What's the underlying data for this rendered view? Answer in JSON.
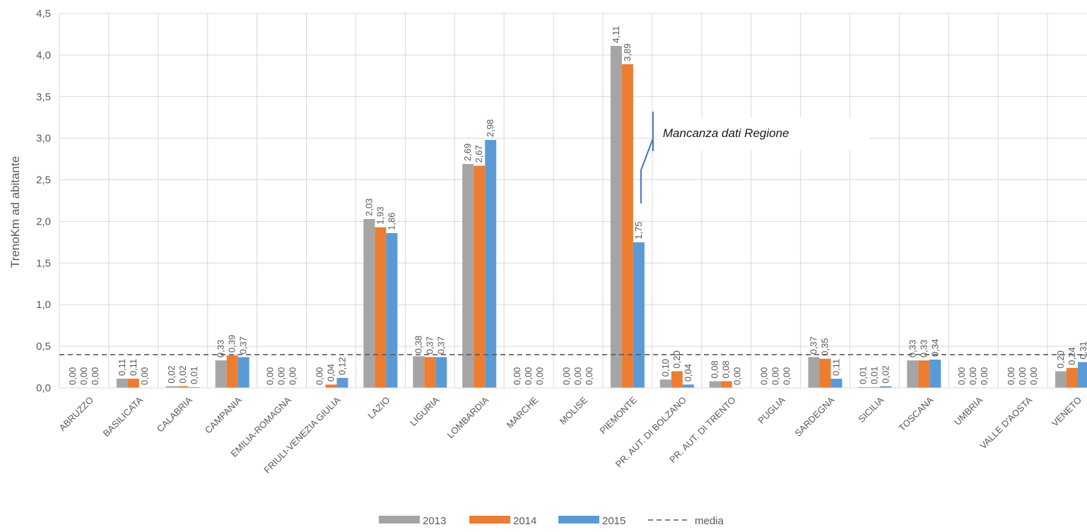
{
  "chart_data": {
    "type": "bar",
    "title": "",
    "xlabel": "",
    "ylabel": "TrenoKm ad abitante",
    "ylim": [
      0,
      4.5
    ],
    "yticks": [
      "0,0",
      "0,5",
      "1,0",
      "1,5",
      "2,0",
      "2,5",
      "3,0",
      "3,5",
      "4,0",
      "4,5"
    ],
    "grid": true,
    "legend_position": "bottom",
    "categories": [
      "ABRUZZO",
      "BASILICATA",
      "CALABRIA",
      "CAMPANIA",
      "EMILIA-ROMAGNA",
      "FRIULI-VENEZIA GIULIA",
      "LAZIO",
      "LIGURIA",
      "LOMBARDIA",
      "MARCHE",
      "MOLISE",
      "PIEMONTE",
      "PR. AUT. DI BOLZANO",
      "PR. AUT. DI TRENTO",
      "PUGLIA",
      "SARDEGNA",
      "SICILIA",
      "TOSCANA",
      "UMBRIA",
      "VALLE D'AOSTA",
      "VENETO"
    ],
    "series": [
      {
        "name": "2013",
        "color": "#A5A5A5",
        "values": [
          0,
          0.11,
          0.02,
          0.33,
          0,
          0,
          2.03,
          0.38,
          2.69,
          0,
          0,
          4.11,
          0.1,
          0.08,
          0,
          0.37,
          0.01,
          0.33,
          0,
          0,
          0.2
        ],
        "labels": [
          "0,00",
          "0,11",
          "0,02",
          "0,33",
          "0,00",
          "0,00",
          "2,03",
          "0,38",
          "2,69",
          "0,00",
          "0,00",
          "4,11",
          "0,10",
          "0,08",
          "0,00",
          "0,37",
          "0,01",
          "0,33",
          "0,00",
          "0,00",
          "0,20"
        ]
      },
      {
        "name": "2014",
        "color": "#ED7D31",
        "values": [
          0,
          0.11,
          0.02,
          0.39,
          0,
          0.04,
          1.93,
          0.37,
          2.67,
          0,
          0,
          3.89,
          0.2,
          0.08,
          0,
          0.35,
          0.01,
          0.33,
          0,
          0,
          0.24
        ],
        "labels": [
          "0,00",
          "0,11",
          "0,02",
          "0,39",
          "0,00",
          "0,04",
          "1,93",
          "0,37",
          "2,67",
          "0,00",
          "0,00",
          "3,89",
          "0,20",
          "0,08",
          "0,00",
          "0,35",
          "0,01",
          "0,33",
          "0,00",
          "0,00",
          "0,24"
        ]
      },
      {
        "name": "2015",
        "color": "#5B9BD5",
        "values": [
          0,
          0,
          0.01,
          0.37,
          0,
          0.12,
          1.86,
          0.37,
          2.98,
          0,
          0,
          1.75,
          0.04,
          0,
          0,
          0.11,
          0.02,
          0.34,
          0,
          0,
          0.31
        ],
        "labels": [
          "0,00",
          "0,00",
          "0,01",
          "0,37",
          "0,00",
          "0,12",
          "1,86",
          "0,37",
          "2,98",
          "0,00",
          "0,00",
          "1,75",
          "0,04",
          "0,00",
          "0,00",
          "0,11",
          "0,02",
          "0,34",
          "0,00",
          "0,00",
          "0,31"
        ]
      }
    ],
    "reference_line": {
      "name": "media",
      "value": 0.4,
      "color": "#595959",
      "style": "dashed"
    },
    "annotation": {
      "text": "Mancanza dati Regione",
      "category": "PIEMONTE",
      "series": "2015",
      "color": "#4472C4"
    }
  }
}
